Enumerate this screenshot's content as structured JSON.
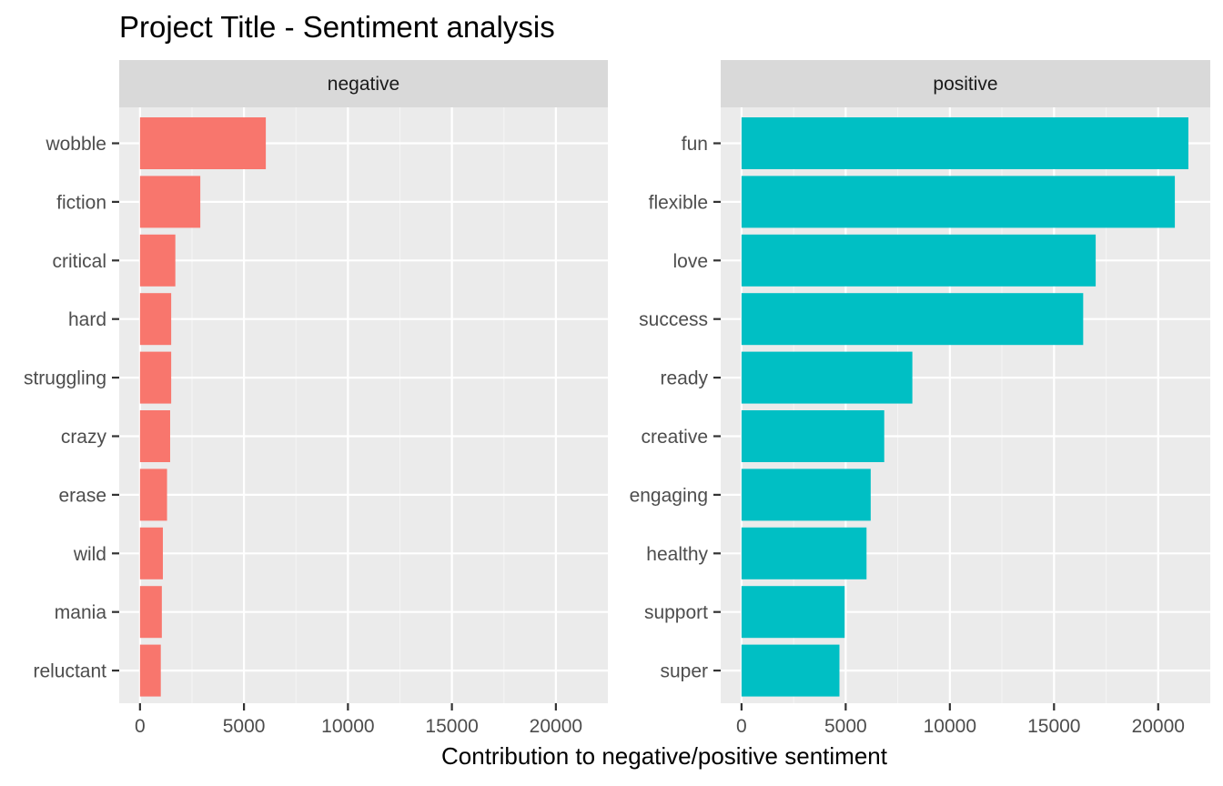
{
  "chart_data": {
    "type": "bar",
    "title": "Project Title - Sentiment analysis",
    "xlabel": "Contribution to negative/positive sentiment",
    "ylabel": "",
    "xlim": [
      -1000,
      22500
    ],
    "x_ticks": [
      "0",
      "5000",
      "10000",
      "15000",
      "20000"
    ],
    "x_tick_values": [
      0,
      5000,
      10000,
      15000,
      20000
    ],
    "orientation": "horizontal",
    "facets": [
      {
        "name": "negative",
        "color": "#F8766D",
        "categories": [
          "wobble",
          "fiction",
          "critical",
          "hard",
          "struggling",
          "crazy",
          "erase",
          "wild",
          "mania",
          "reluctant"
        ],
        "values": [
          6050,
          2900,
          1700,
          1500,
          1500,
          1450,
          1300,
          1100,
          1050,
          1000
        ]
      },
      {
        "name": "positive",
        "color": "#00BFC4",
        "categories": [
          "fun",
          "flexible",
          "love",
          "success",
          "ready",
          "creative",
          "engaging",
          "healthy",
          "support",
          "super"
        ],
        "values": [
          21450,
          20800,
          17000,
          16400,
          8200,
          6850,
          6200,
          6000,
          4950,
          4700
        ]
      }
    ]
  }
}
